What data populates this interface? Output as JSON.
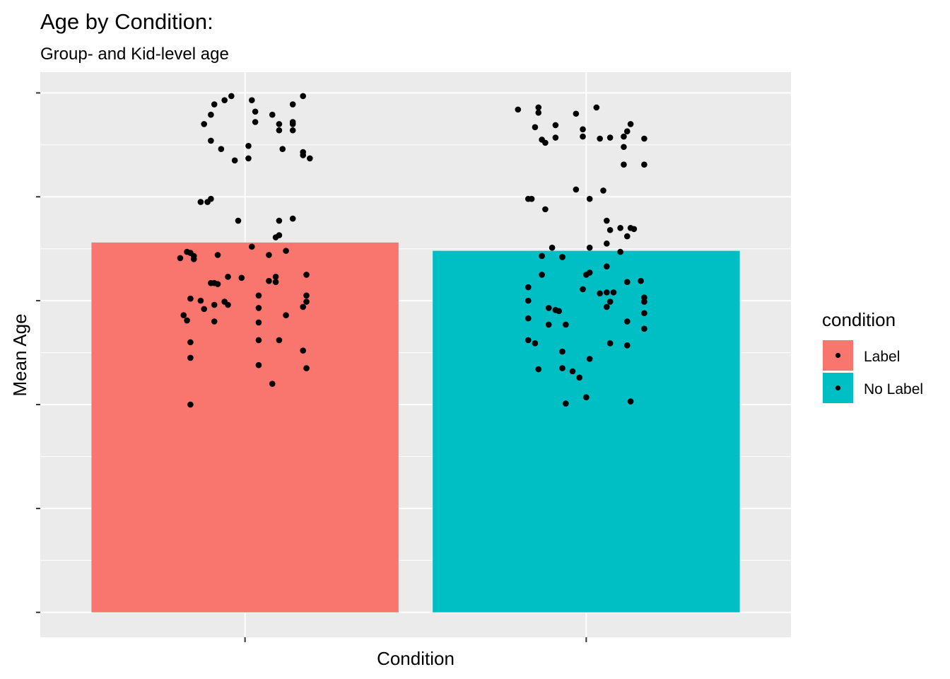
{
  "chart_data": {
    "type": "bar",
    "title": "Age by Condition:",
    "subtitle": "Group- and Kid-level age",
    "xlabel": "Condition",
    "ylabel": "Mean Age",
    "categories": [
      "Label",
      "No Label"
    ],
    "values": [
      3.56,
      3.48
    ],
    "ylim": [
      -0.24,
      5.2
    ],
    "y_major_ticks": [
      0,
      1,
      2,
      3,
      4,
      5
    ],
    "grid": true,
    "colors": {
      "Label": "#F8766D",
      "No Label": "#00BFC4",
      "points": "#000000",
      "panel": "#EBEBEB",
      "grid": "#FFFFFF"
    },
    "legend": {
      "title": "condition",
      "position": "right",
      "items": [
        {
          "label": "Label",
          "color": "#F8766D"
        },
        {
          "label": "No Label",
          "color": "#00BFC4"
        }
      ]
    },
    "points": [
      {
        "group": "Label",
        "x": -0.04,
        "y": 4.97
      },
      {
        "group": "Label",
        "x": 0.17,
        "y": 4.97
      },
      {
        "group": "Label",
        "x": -0.06,
        "y": 4.93
      },
      {
        "group": "Label",
        "x": 0.02,
        "y": 4.93
      },
      {
        "group": "Label",
        "x": -0.09,
        "y": 4.89
      },
      {
        "group": "Label",
        "x": 0.14,
        "y": 4.89
      },
      {
        "group": "Label",
        "x": 0.03,
        "y": 4.82
      },
      {
        "group": "Label",
        "x": -0.1,
        "y": 4.79
      },
      {
        "group": "Label",
        "x": 0.08,
        "y": 4.79
      },
      {
        "group": "Label",
        "x": 0.03,
        "y": 4.72
      },
      {
        "group": "Label",
        "x": 0.14,
        "y": 4.72
      },
      {
        "group": "Label",
        "x": -0.12,
        "y": 4.7
      },
      {
        "group": "Label",
        "x": 0.1,
        "y": 4.7
      },
      {
        "group": "Label",
        "x": 0.14,
        "y": 4.7
      },
      {
        "group": "Label",
        "x": 0.1,
        "y": 4.64
      },
      {
        "group": "Label",
        "x": 0.14,
        "y": 4.64
      },
      {
        "group": "Label",
        "x": -0.1,
        "y": 4.54
      },
      {
        "group": "Label",
        "x": 0.01,
        "y": 4.49
      },
      {
        "group": "Label",
        "x": -0.07,
        "y": 4.46
      },
      {
        "group": "Label",
        "x": 0.11,
        "y": 4.46
      },
      {
        "group": "Label",
        "x": 0.17,
        "y": 4.43
      },
      {
        "group": "Label",
        "x": 0.17,
        "y": 4.4
      },
      {
        "group": "Label",
        "x": 0.19,
        "y": 4.37
      },
      {
        "group": "Label",
        "x": -0.03,
        "y": 4.35
      },
      {
        "group": "Label",
        "x": 0.01,
        "y": 4.37
      },
      {
        "group": "Label",
        "x": -0.1,
        "y": 3.98
      },
      {
        "group": "Label",
        "x": -0.13,
        "y": 3.95
      },
      {
        "group": "Label",
        "x": -0.11,
        "y": 3.95
      },
      {
        "group": "Label",
        "x": -0.02,
        "y": 3.77
      },
      {
        "group": "Label",
        "x": 0.1,
        "y": 3.77
      },
      {
        "group": "Label",
        "x": 0.14,
        "y": 3.79
      },
      {
        "group": "Label",
        "x": 0.09,
        "y": 3.61
      },
      {
        "group": "Label",
        "x": 0.1,
        "y": 3.63
      },
      {
        "group": "Label",
        "x": 0.02,
        "y": 3.52
      },
      {
        "group": "Label",
        "x": -0.17,
        "y": 3.47
      },
      {
        "group": "Label",
        "x": -0.16,
        "y": 3.46
      },
      {
        "group": "Label",
        "x": -0.15,
        "y": 3.43
      },
      {
        "group": "Label",
        "x": -0.19,
        "y": 3.41
      },
      {
        "group": "Label",
        "x": -0.15,
        "y": 3.4
      },
      {
        "group": "Label",
        "x": -0.08,
        "y": 3.44
      },
      {
        "group": "Label",
        "x": 0.07,
        "y": 3.44
      },
      {
        "group": "Label",
        "x": 0.12,
        "y": 3.48
      },
      {
        "group": "Label",
        "x": -0.05,
        "y": 3.23
      },
      {
        "group": "Label",
        "x": -0.01,
        "y": 3.22
      },
      {
        "group": "Label",
        "x": 0.09,
        "y": 3.23
      },
      {
        "group": "Label",
        "x": 0.18,
        "y": 3.25
      },
      {
        "group": "Label",
        "x": -0.1,
        "y": 3.17
      },
      {
        "group": "Label",
        "x": -0.09,
        "y": 3.17
      },
      {
        "group": "Label",
        "x": -0.08,
        "y": 3.16
      },
      {
        "group": "Label",
        "x": 0.07,
        "y": 3.19
      },
      {
        "group": "Label",
        "x": 0.09,
        "y": 3.18
      },
      {
        "group": "Label",
        "x": -0.16,
        "y": 3.02
      },
      {
        "group": "Label",
        "x": 0.04,
        "y": 3.05
      },
      {
        "group": "Label",
        "x": 0.18,
        "y": 3.05
      },
      {
        "group": "Label",
        "x": -0.13,
        "y": 3.0
      },
      {
        "group": "Label",
        "x": -0.06,
        "y": 2.99
      },
      {
        "group": "Label",
        "x": -0.09,
        "y": 2.96
      },
      {
        "group": "Label",
        "x": -0.05,
        "y": 2.96
      },
      {
        "group": "Label",
        "x": 0.18,
        "y": 2.99
      },
      {
        "group": "Label",
        "x": -0.12,
        "y": 2.92
      },
      {
        "group": "Label",
        "x": 0.04,
        "y": 2.93
      },
      {
        "group": "Label",
        "x": 0.17,
        "y": 2.94
      },
      {
        "group": "Label",
        "x": -0.18,
        "y": 2.86
      },
      {
        "group": "Label",
        "x": 0.12,
        "y": 2.86
      },
      {
        "group": "Label",
        "x": -0.17,
        "y": 2.81
      },
      {
        "group": "Label",
        "x": -0.09,
        "y": 2.8
      },
      {
        "group": "Label",
        "x": 0.04,
        "y": 2.79
      },
      {
        "group": "Label",
        "x": -0.16,
        "y": 2.6
      },
      {
        "group": "Label",
        "x": 0.04,
        "y": 2.62
      },
      {
        "group": "Label",
        "x": 0.1,
        "y": 2.62
      },
      {
        "group": "Label",
        "x": -0.16,
        "y": 2.45
      },
      {
        "group": "Label",
        "x": 0.17,
        "y": 2.52
      },
      {
        "group": "Label",
        "x": 0.04,
        "y": 2.38
      },
      {
        "group": "Label",
        "x": 0.18,
        "y": 2.35
      },
      {
        "group": "Label",
        "x": 0.08,
        "y": 2.2
      },
      {
        "group": "Label",
        "x": -0.16,
        "y": 2.0
      },
      {
        "group": "No Label",
        "x": -0.2,
        "y": 4.84
      },
      {
        "group": "No Label",
        "x": -0.14,
        "y": 4.86
      },
      {
        "group": "No Label",
        "x": -0.14,
        "y": 4.81
      },
      {
        "group": "No Label",
        "x": 0.03,
        "y": 4.86
      },
      {
        "group": "No Label",
        "x": -0.03,
        "y": 4.8
      },
      {
        "group": "No Label",
        "x": 0.13,
        "y": 4.7
      },
      {
        "group": "No Label",
        "x": -0.09,
        "y": 4.69
      },
      {
        "group": "No Label",
        "x": -0.01,
        "y": 4.65
      },
      {
        "group": "No Label",
        "x": -0.15,
        "y": 4.67
      },
      {
        "group": "No Label",
        "x": 0.12,
        "y": 4.63
      },
      {
        "group": "No Label",
        "x": -0.09,
        "y": 4.57
      },
      {
        "group": "No Label",
        "x": -0.01,
        "y": 4.58
      },
      {
        "group": "No Label",
        "x": 0.04,
        "y": 4.56
      },
      {
        "group": "No Label",
        "x": 0.07,
        "y": 4.57
      },
      {
        "group": "No Label",
        "x": 0.11,
        "y": 4.58
      },
      {
        "group": "No Label",
        "x": 0.17,
        "y": 4.56
      },
      {
        "group": "No Label",
        "x": -0.13,
        "y": 4.55
      },
      {
        "group": "No Label",
        "x": -0.12,
        "y": 4.52
      },
      {
        "group": "No Label",
        "x": 0.11,
        "y": 4.48
      },
      {
        "group": "No Label",
        "x": 0.11,
        "y": 4.31
      },
      {
        "group": "No Label",
        "x": 0.17,
        "y": 4.31
      },
      {
        "group": "No Label",
        "x": -0.03,
        "y": 4.07
      },
      {
        "group": "No Label",
        "x": 0.05,
        "y": 4.06
      },
      {
        "group": "No Label",
        "x": -0.17,
        "y": 3.98
      },
      {
        "group": "No Label",
        "x": -0.16,
        "y": 3.98
      },
      {
        "group": "No Label",
        "x": 0.01,
        "y": 3.98
      },
      {
        "group": "No Label",
        "x": -0.12,
        "y": 3.88
      },
      {
        "group": "No Label",
        "x": 0.06,
        "y": 3.77
      },
      {
        "group": "No Label",
        "x": 0.1,
        "y": 3.7
      },
      {
        "group": "No Label",
        "x": 0.13,
        "y": 3.7
      },
      {
        "group": "No Label",
        "x": 0.07,
        "y": 3.68
      },
      {
        "group": "No Label",
        "x": 0.14,
        "y": 3.69
      },
      {
        "group": "No Label",
        "x": 0.12,
        "y": 3.62
      },
      {
        "group": "No Label",
        "x": 0.06,
        "y": 3.55
      },
      {
        "group": "No Label",
        "x": 0.01,
        "y": 3.51
      },
      {
        "group": "No Label",
        "x": -0.1,
        "y": 3.51
      },
      {
        "group": "No Label",
        "x": -0.07,
        "y": 3.42
      },
      {
        "group": "No Label",
        "x": -0.07,
        "y": 3.42
      },
      {
        "group": "No Label",
        "x": -0.13,
        "y": 3.43
      },
      {
        "group": "No Label",
        "x": 0.1,
        "y": 3.47
      },
      {
        "group": "No Label",
        "x": 0.06,
        "y": 3.33
      },
      {
        "group": "No Label",
        "x": -0.13,
        "y": 3.25
      },
      {
        "group": "No Label",
        "x": 0.0,
        "y": 3.25
      },
      {
        "group": "No Label",
        "x": 0.01,
        "y": 3.27
      },
      {
        "group": "No Label",
        "x": 0.12,
        "y": 3.18
      },
      {
        "group": "No Label",
        "x": 0.16,
        "y": 3.19
      },
      {
        "group": "No Label",
        "x": -0.17,
        "y": 3.13
      },
      {
        "group": "No Label",
        "x": -0.01,
        "y": 3.11
      },
      {
        "group": "No Label",
        "x": 0.04,
        "y": 3.07
      },
      {
        "group": "No Label",
        "x": 0.06,
        "y": 3.08
      },
      {
        "group": "No Label",
        "x": 0.08,
        "y": 3.08
      },
      {
        "group": "No Label",
        "x": 0.17,
        "y": 3.03
      },
      {
        "group": "No Label",
        "x": -0.17,
        "y": 3.0
      },
      {
        "group": "No Label",
        "x": 0.07,
        "y": 2.99
      },
      {
        "group": "No Label",
        "x": 0.17,
        "y": 2.99
      },
      {
        "group": "No Label",
        "x": 0.06,
        "y": 2.94
      },
      {
        "group": "No Label",
        "x": -0.11,
        "y": 2.93
      },
      {
        "group": "No Label",
        "x": -0.09,
        "y": 2.91
      },
      {
        "group": "No Label",
        "x": -0.08,
        "y": 2.9
      },
      {
        "group": "No Label",
        "x": 0.17,
        "y": 2.88
      },
      {
        "group": "No Label",
        "x": -0.17,
        "y": 2.83
      },
      {
        "group": "No Label",
        "x": 0.12,
        "y": 2.8
      },
      {
        "group": "No Label",
        "x": -0.11,
        "y": 2.77
      },
      {
        "group": "No Label",
        "x": -0.06,
        "y": 2.77
      },
      {
        "group": "No Label",
        "x": 0.17,
        "y": 2.73
      },
      {
        "group": "No Label",
        "x": -0.17,
        "y": 2.62
      },
      {
        "group": "No Label",
        "x": -0.15,
        "y": 2.59
      },
      {
        "group": "No Label",
        "x": 0.07,
        "y": 2.59
      },
      {
        "group": "No Label",
        "x": -0.07,
        "y": 2.51
      },
      {
        "group": "No Label",
        "x": 0.12,
        "y": 2.57
      },
      {
        "group": "No Label",
        "x": 0.01,
        "y": 2.44
      },
      {
        "group": "No Label",
        "x": -0.14,
        "y": 2.34
      },
      {
        "group": "No Label",
        "x": -0.07,
        "y": 2.35
      },
      {
        "group": "No Label",
        "x": -0.04,
        "y": 2.32
      },
      {
        "group": "No Label",
        "x": -0.02,
        "y": 2.26
      },
      {
        "group": "No Label",
        "x": -0.06,
        "y": 2.01
      },
      {
        "group": "No Label",
        "x": 0.0,
        "y": 2.07
      },
      {
        "group": "No Label",
        "x": 0.13,
        "y": 2.03
      }
    ]
  }
}
